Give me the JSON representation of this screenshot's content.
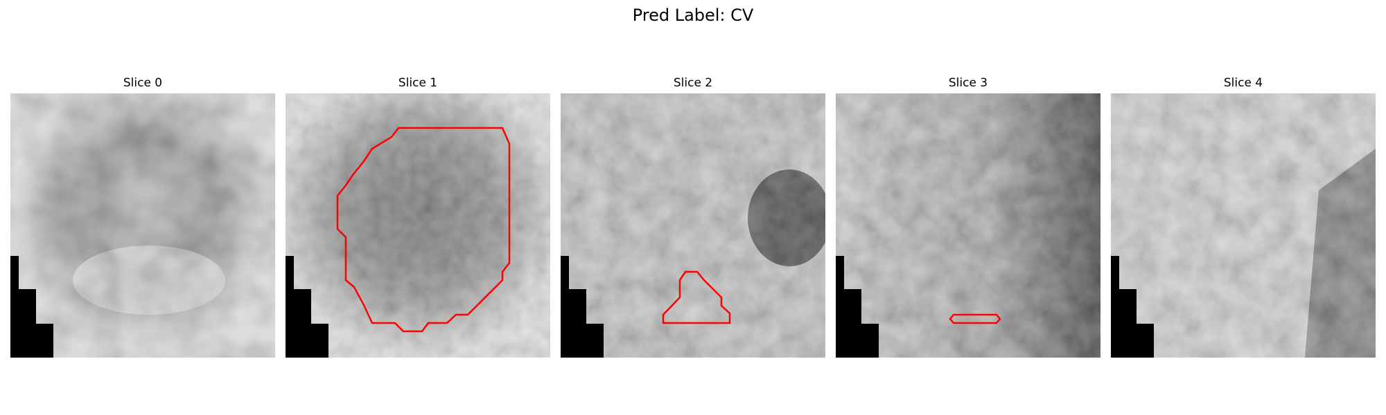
{
  "figure": {
    "title": "Pred Label: CV"
  },
  "panels": [
    {
      "title": "Slice 0",
      "contour": null
    },
    {
      "title": "Slice 1",
      "contour": "large-region"
    },
    {
      "title": "Slice 2",
      "contour": "small-region"
    },
    {
      "title": "Slice 3",
      "contour": "thin-region"
    },
    {
      "title": "Slice 4",
      "contour": null
    }
  ],
  "colors": {
    "contour": "#ff0000",
    "background": "#ffffff"
  }
}
